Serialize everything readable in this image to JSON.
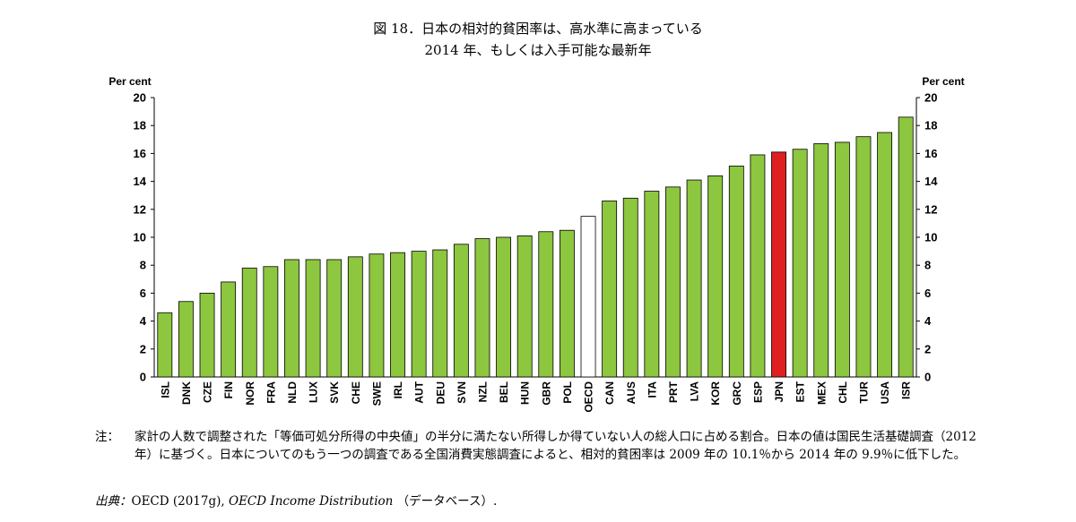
{
  "figure": {
    "title": "図 18．日本の相対的貧困率は、高水準に高まっている",
    "subtitle": "2014 年、もしくは入手可能な最新年"
  },
  "chart_data": {
    "type": "bar",
    "ylabel_left": "Per cent",
    "ylabel_right": "Per cent",
    "ylim": [
      0,
      20
    ],
    "yticks": [
      0,
      2,
      4,
      6,
      8,
      10,
      12,
      14,
      16,
      18,
      20
    ],
    "grid": false,
    "categories": [
      "ISL",
      "DNK",
      "CZE",
      "FIN",
      "NOR",
      "FRA",
      "NLD",
      "LUX",
      "SVK",
      "CHE",
      "SWE",
      "IRL",
      "AUT",
      "DEU",
      "SVN",
      "NZL",
      "BEL",
      "HUN",
      "GBR",
      "POL",
      "OECD",
      "CAN",
      "AUS",
      "ITA",
      "PRT",
      "LVA",
      "KOR",
      "GRC",
      "ESP",
      "JPN",
      "EST",
      "MEX",
      "CHL",
      "TUR",
      "USA",
      "ISR"
    ],
    "values": [
      4.6,
      5.4,
      6.0,
      6.8,
      7.8,
      7.9,
      8.4,
      8.4,
      8.4,
      8.6,
      8.8,
      8.9,
      9.0,
      9.1,
      9.5,
      9.9,
      10.0,
      10.1,
      10.4,
      10.5,
      11.5,
      12.6,
      12.8,
      13.3,
      13.6,
      14.1,
      14.4,
      15.1,
      15.9,
      16.1,
      16.3,
      16.7,
      16.8,
      17.2,
      17.5,
      18.6
    ],
    "colors": {
      "default": "#8dc63f",
      "highlight": "#e02020",
      "average": "#ffffff",
      "outline": "#000000"
    },
    "highlight": "JPN",
    "average": "OECD"
  },
  "notes": {
    "label": "注：",
    "text": "家計の人数で調整された「等価可処分所得の中央値」の半分に満たない所得しか得ていない人の総人口に占める割合。日本の値は国民生活基礎調査（2012 年）に基づく。日本についてのもう一つの調査である全国消費実態調査によると、相対的貧困率は 2009 年の 10.1％から 2014 年の 9.9％に低下した。"
  },
  "source": {
    "label": "出典：",
    "text1": "OECD (2017g),",
    "title": "OECD Income Distribution",
    "text2": "（データベース）."
  }
}
